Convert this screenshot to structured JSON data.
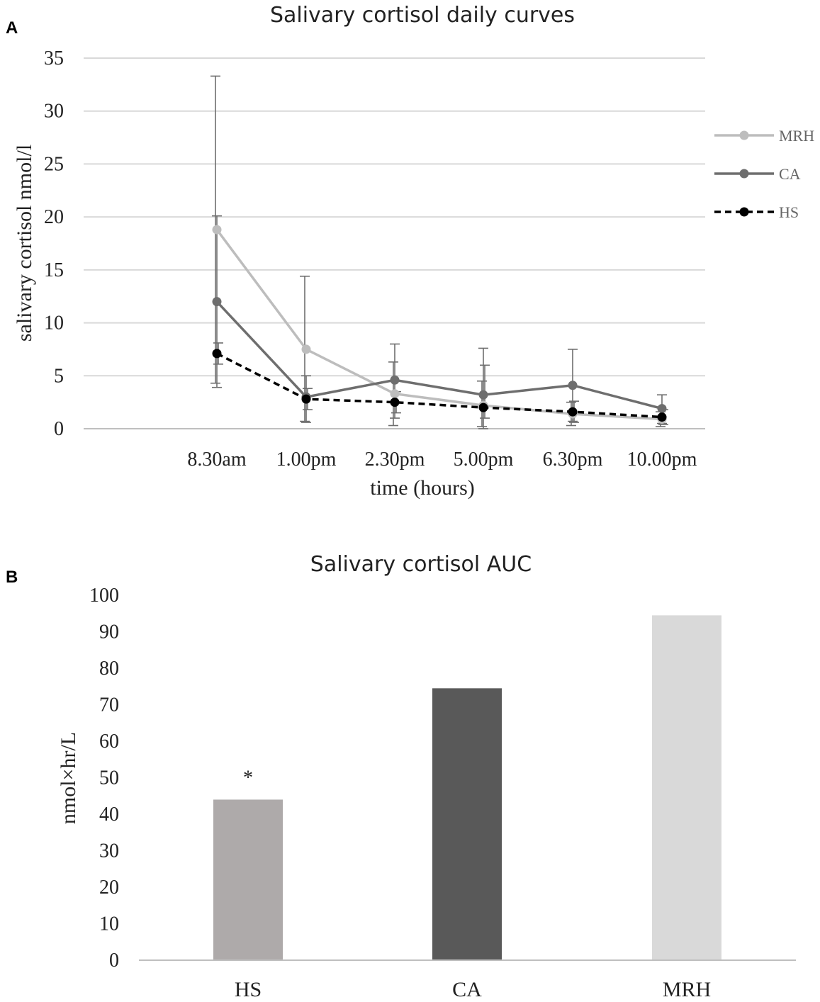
{
  "chart_data": [
    {
      "panel": "A",
      "type": "line",
      "title": "Salivary cortisol daily curves",
      "xlabel": "time (hours)",
      "ylabel": "salivary cortisol nmol/l",
      "ylim": [
        0,
        35
      ],
      "yticks": [
        0,
        5,
        10,
        15,
        20,
        25,
        30,
        35
      ],
      "categories": [
        "8.30am",
        "1.00pm",
        "2.30pm",
        "5.00pm",
        "6.30pm",
        "10.00pm"
      ],
      "grid": true,
      "legend": "right",
      "series": [
        {
          "name": "MRH",
          "color": "#bdbdbd",
          "dashed": false,
          "values": [
            18.8,
            7.5,
            3.3,
            2.2,
            1.4,
            0.9
          ],
          "err_low": [
            4.3,
            0.7,
            0.3,
            0.2,
            0.3,
            0.2
          ],
          "err_high": [
            33.3,
            14.4,
            6.3,
            4.5,
            2.5,
            1.6
          ]
        },
        {
          "name": "CA",
          "color": "#6e6e6e",
          "dashed": false,
          "values": [
            12.0,
            3.0,
            4.6,
            3.2,
            4.1,
            1.9
          ],
          "err_low": [
            3.9,
            0.6,
            1.0,
            0.0,
            0.7,
            0.5
          ],
          "err_high": [
            20.1,
            5.0,
            8.0,
            7.6,
            7.5,
            3.2
          ]
        },
        {
          "name": "HS",
          "color": "#000000",
          "dashed": true,
          "values": [
            7.1,
            2.8,
            2.5,
            2.0,
            1.6,
            1.1
          ],
          "err_low": [
            6.1,
            1.8,
            1.5,
            1.0,
            0.6,
            0.4
          ],
          "err_high": [
            8.1,
            3.8,
            3.5,
            6.0,
            2.6,
            1.8
          ]
        }
      ]
    },
    {
      "panel": "B",
      "type": "bar",
      "title": "Salivary cortisol AUC",
      "xlabel": "",
      "ylabel": "nmol×hr/L",
      "ylim": [
        0,
        100
      ],
      "yticks": [
        0,
        10,
        20,
        30,
        40,
        50,
        60,
        70,
        80,
        90,
        100
      ],
      "categories": [
        "HS",
        "CA",
        "MRH"
      ],
      "values": [
        44,
        74.5,
        94.5
      ],
      "colors": [
        "#aeaaaa",
        "#595959",
        "#d9d9d9"
      ],
      "annotations": [
        {
          "category": "HS",
          "text": "*"
        }
      ],
      "grid": false
    }
  ]
}
